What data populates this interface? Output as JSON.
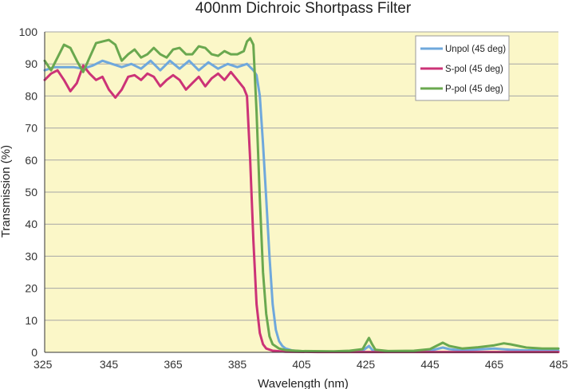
{
  "chart_data": {
    "type": "line",
    "title": "400nm Dichroic Shortpass Filter",
    "xlabel": "Wavelength (nm)",
    "ylabel": "Transmission (%)",
    "xlim": [
      325,
      485
    ],
    "ylim": [
      0,
      100
    ],
    "x_ticks": [
      325,
      345,
      365,
      385,
      405,
      425,
      445,
      465,
      485
    ],
    "y_ticks": [
      0,
      10,
      20,
      30,
      40,
      50,
      60,
      70,
      80,
      90,
      100
    ],
    "grid": "horizontal",
    "legend_position": "top-right",
    "background_color": "#fbf7c8",
    "series": [
      {
        "name": "Unpol (45 deg)",
        "color": "#6fa8dc",
        "points": [
          [
            325,
            88
          ],
          [
            328,
            89
          ],
          [
            331,
            89
          ],
          [
            334,
            89
          ],
          [
            337,
            88.5
          ],
          [
            340,
            89.5
          ],
          [
            343,
            91
          ],
          [
            346,
            90
          ],
          [
            349,
            89
          ],
          [
            352,
            90
          ],
          [
            355,
            88.5
          ],
          [
            358,
            91
          ],
          [
            361,
            88
          ],
          [
            364,
            91
          ],
          [
            367,
            88.5
          ],
          [
            370,
            91
          ],
          [
            373,
            88
          ],
          [
            376,
            90.5
          ],
          [
            379,
            88.5
          ],
          [
            382,
            90
          ],
          [
            385,
            89
          ],
          [
            388,
            90
          ],
          [
            390,
            88
          ],
          [
            391,
            86.5
          ],
          [
            392,
            80
          ],
          [
            393,
            65
          ],
          [
            394,
            48
          ],
          [
            395,
            30
          ],
          [
            396,
            15
          ],
          [
            397,
            7
          ],
          [
            398,
            3.5
          ],
          [
            399,
            2
          ],
          [
            400,
            1.2
          ],
          [
            402,
            0.6
          ],
          [
            405,
            0.3
          ],
          [
            410,
            0.2
          ],
          [
            420,
            0.2
          ],
          [
            424,
            0.5
          ],
          [
            426,
            2
          ],
          [
            427,
            0.8
          ],
          [
            428,
            0.3
          ],
          [
            435,
            0.2
          ],
          [
            445,
            0.5
          ],
          [
            449,
            1.5
          ],
          [
            451,
            1
          ],
          [
            455,
            0.6
          ],
          [
            460,
            0.9
          ],
          [
            465,
            1.2
          ],
          [
            470,
            0.8
          ],
          [
            475,
            0.6
          ],
          [
            480,
            0.8
          ],
          [
            485,
            0.5
          ]
        ]
      },
      {
        "name": "S-pol (45 deg)",
        "color": "#cc3377",
        "points": [
          [
            325,
            85
          ],
          [
            327,
            87
          ],
          [
            329,
            88
          ],
          [
            331,
            85
          ],
          [
            333,
            81.5
          ],
          [
            335,
            84
          ],
          [
            337,
            89.5
          ],
          [
            339,
            87
          ],
          [
            341,
            85
          ],
          [
            343,
            86
          ],
          [
            345,
            82
          ],
          [
            347,
            79.5
          ],
          [
            349,
            82
          ],
          [
            351,
            86
          ],
          [
            353,
            86.5
          ],
          [
            355,
            85
          ],
          [
            357,
            87
          ],
          [
            359,
            86
          ],
          [
            361,
            83
          ],
          [
            363,
            85
          ],
          [
            365,
            86.5
          ],
          [
            367,
            85
          ],
          [
            369,
            82
          ],
          [
            371,
            84
          ],
          [
            373,
            86
          ],
          [
            375,
            83
          ],
          [
            377,
            85.5
          ],
          [
            379,
            87
          ],
          [
            381,
            85
          ],
          [
            383,
            87.5
          ],
          [
            385,
            85
          ],
          [
            387,
            82.5
          ],
          [
            388,
            80
          ],
          [
            389,
            60
          ],
          [
            390,
            35
          ],
          [
            391,
            15
          ],
          [
            392,
            6
          ],
          [
            393,
            2.5
          ],
          [
            394,
            1.2
          ],
          [
            396,
            0.5
          ],
          [
            400,
            0.2
          ],
          [
            410,
            0.1
          ],
          [
            485,
            0.1
          ]
        ]
      },
      {
        "name": "P-pol (45 deg)",
        "color": "#6aa84f",
        "points": [
          [
            325,
            91
          ],
          [
            327,
            88
          ],
          [
            329,
            92
          ],
          [
            331,
            96
          ],
          [
            333,
            95
          ],
          [
            335,
            91
          ],
          [
            337,
            87.5
          ],
          [
            339,
            92
          ],
          [
            341,
            96.5
          ],
          [
            343,
            97
          ],
          [
            345,
            97.5
          ],
          [
            347,
            96
          ],
          [
            349,
            91
          ],
          [
            351,
            93
          ],
          [
            353,
            94.5
          ],
          [
            355,
            92
          ],
          [
            357,
            93
          ],
          [
            359,
            95
          ],
          [
            361,
            93
          ],
          [
            363,
            92
          ],
          [
            365,
            94.5
          ],
          [
            367,
            95
          ],
          [
            369,
            93
          ],
          [
            371,
            93
          ],
          [
            373,
            95.5
          ],
          [
            375,
            95
          ],
          [
            377,
            93
          ],
          [
            379,
            92.5
          ],
          [
            381,
            94
          ],
          [
            383,
            93
          ],
          [
            385,
            93
          ],
          [
            387,
            94
          ],
          [
            388,
            97
          ],
          [
            389,
            98
          ],
          [
            390,
            96
          ],
          [
            391,
            75
          ],
          [
            392,
            48
          ],
          [
            393,
            25
          ],
          [
            394,
            12
          ],
          [
            395,
            5
          ],
          [
            396,
            2.5
          ],
          [
            398,
            1.2
          ],
          [
            400,
            0.7
          ],
          [
            405,
            0.4
          ],
          [
            415,
            0.3
          ],
          [
            420,
            0.5
          ],
          [
            424,
            1
          ],
          [
            426,
            4.5
          ],
          [
            427,
            2.5
          ],
          [
            428,
            0.8
          ],
          [
            432,
            0.4
          ],
          [
            440,
            0.5
          ],
          [
            445,
            1
          ],
          [
            449,
            3
          ],
          [
            451,
            2
          ],
          [
            455,
            1.2
          ],
          [
            460,
            1.6
          ],
          [
            465,
            2.2
          ],
          [
            468,
            2.8
          ],
          [
            470,
            2.5
          ],
          [
            475,
            1.5
          ],
          [
            480,
            1.2
          ],
          [
            485,
            1.2
          ]
        ]
      }
    ]
  }
}
